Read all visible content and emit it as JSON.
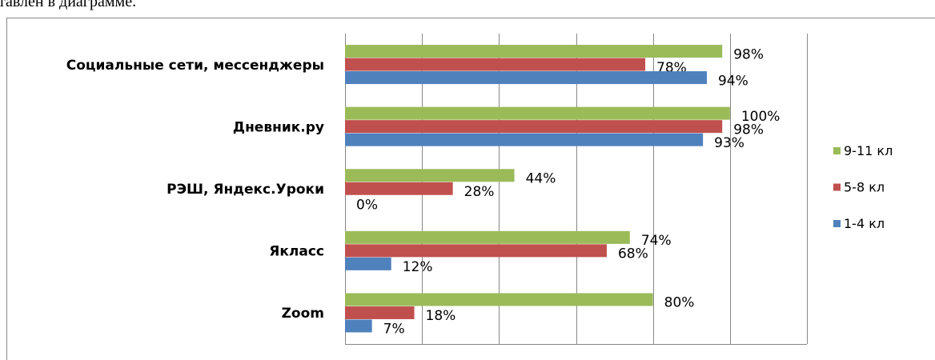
{
  "text_above": "тавлен в диаграмме.",
  "chart_data": {
    "type": "hbar",
    "categories": [
      "Социальные сети, мессенджеры",
      "Дневник.ру",
      "РЭШ, Яндекс.Уроки",
      "Якласс",
      "Zoom"
    ],
    "series": [
      {
        "name": "9-11 кл",
        "color": "#9bbb59",
        "values": [
          98,
          100,
          44,
          74,
          80
        ],
        "value_labels": [
          "98%",
          "100%",
          "44%",
          "74%",
          "80%"
        ]
      },
      {
        "name": "5-8 кл",
        "color": "#c0504d",
        "values": [
          78,
          98,
          28,
          68,
          18
        ],
        "value_labels": [
          "78%",
          "98%",
          "28%",
          "68%",
          "18%"
        ]
      },
      {
        "name": "1-4 кл",
        "color": "#4f81bd",
        "values": [
          94,
          93,
          0,
          12,
          7
        ],
        "value_labels": [
          "94%",
          "93%",
          "0%",
          "12%",
          "7%"
        ]
      }
    ],
    "xlim": [
      0,
      120
    ],
    "xticks": [
      0,
      20,
      40,
      60,
      80,
      100,
      120
    ],
    "tick_labels": false,
    "grid": true,
    "legend": "right"
  }
}
